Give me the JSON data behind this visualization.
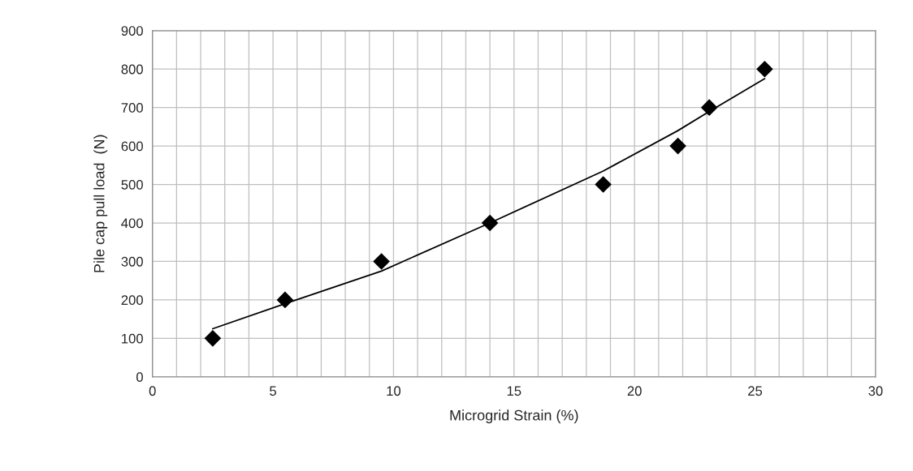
{
  "chart_data": {
    "type": "scatter",
    "xlabel": "Microgrid Strain (%)",
    "ylabel": "Pile cap pull load  (N)",
    "series": [
      {
        "color": "#000000",
        "marker": "diamond",
        "x": [
          2.5,
          5.5,
          9.5,
          14,
          18.7,
          21.8,
          23.1,
          25.4
        ],
        "values": [
          100,
          200,
          300,
          400,
          500,
          600,
          700,
          800
        ]
      },
      {
        "type": "line",
        "color": "#000000",
        "marker": "none",
        "line_style": "solid",
        "x": [
          2.5,
          5.5,
          9.5,
          14,
          18.7,
          21.8,
          23.1,
          25.4
        ],
        "values": [
          125,
          190,
          275,
          400,
          535,
          640,
          690,
          775
        ]
      }
    ],
    "xlim": [
      0,
      30
    ],
    "ylim": [
      0,
      900
    ],
    "xticks": [
      0,
      {
        "value": 1,
        "label": null
      },
      {
        "value": 2,
        "label": null
      },
      {
        "value": 3,
        "label": null
      },
      {
        "value": 4,
        "label": null
      },
      5,
      {
        "value": 6,
        "label": null
      },
      {
        "value": 7,
        "label": null
      },
      {
        "value": 8,
        "label": null
      },
      {
        "value": 9,
        "label": null
      },
      10,
      {
        "value": 11,
        "label": null
      },
      {
        "value": 12,
        "label": null
      },
      {
        "value": 13,
        "label": null
      },
      {
        "value": 14,
        "label": null
      },
      15,
      {
        "value": 16,
        "label": null
      },
      {
        "value": 17,
        "label": null
      },
      {
        "value": 18,
        "label": null
      },
      {
        "value": 19,
        "label": null
      },
      20,
      {
        "value": 21,
        "label": null
      },
      {
        "value": 22,
        "label": null
      },
      {
        "value": 23,
        "label": null
      },
      {
        "value": 24,
        "label": null
      },
      25,
      {
        "value": 26,
        "label": null
      },
      {
        "value": 27,
        "label": null
      },
      {
        "value": 28,
        "label": null
      },
      {
        "value": 29,
        "label": null
      },
      30
    ],
    "yticks": [
      0,
      100,
      200,
      300,
      400,
      500,
      600,
      700,
      800,
      900
    ],
    "grid": true,
    "legend": false
  }
}
